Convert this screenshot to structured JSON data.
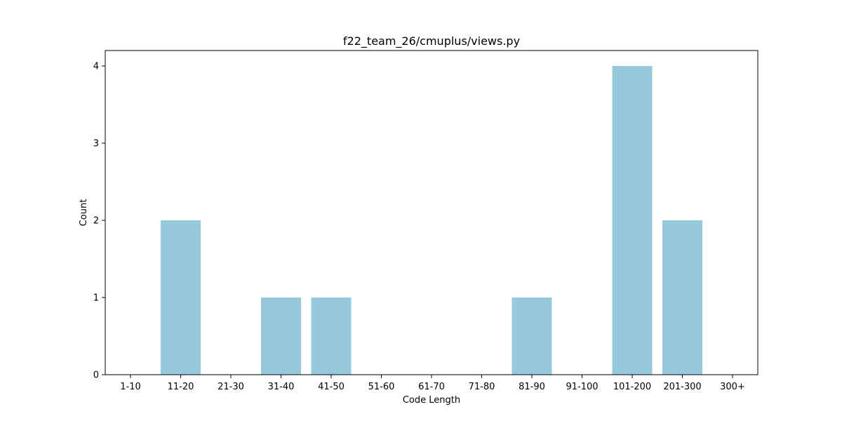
{
  "chart_data": {
    "type": "bar",
    "title": "f22_team_26/cmuplus/views.py",
    "xlabel": "Code Length",
    "ylabel": "Count",
    "categories": [
      "1-10",
      "11-20",
      "21-30",
      "31-40",
      "41-50",
      "51-60",
      "61-70",
      "71-80",
      "81-90",
      "91-100",
      "101-200",
      "201-300",
      "300+"
    ],
    "values": [
      0,
      2,
      0,
      1,
      1,
      0,
      0,
      0,
      1,
      0,
      4,
      2,
      0
    ],
    "ylim": [
      0,
      4.2
    ],
    "yticks": [
      0,
      1,
      2,
      3,
      4
    ],
    "bar_color": "#96c9dc",
    "grid": false,
    "legend": "none"
  }
}
